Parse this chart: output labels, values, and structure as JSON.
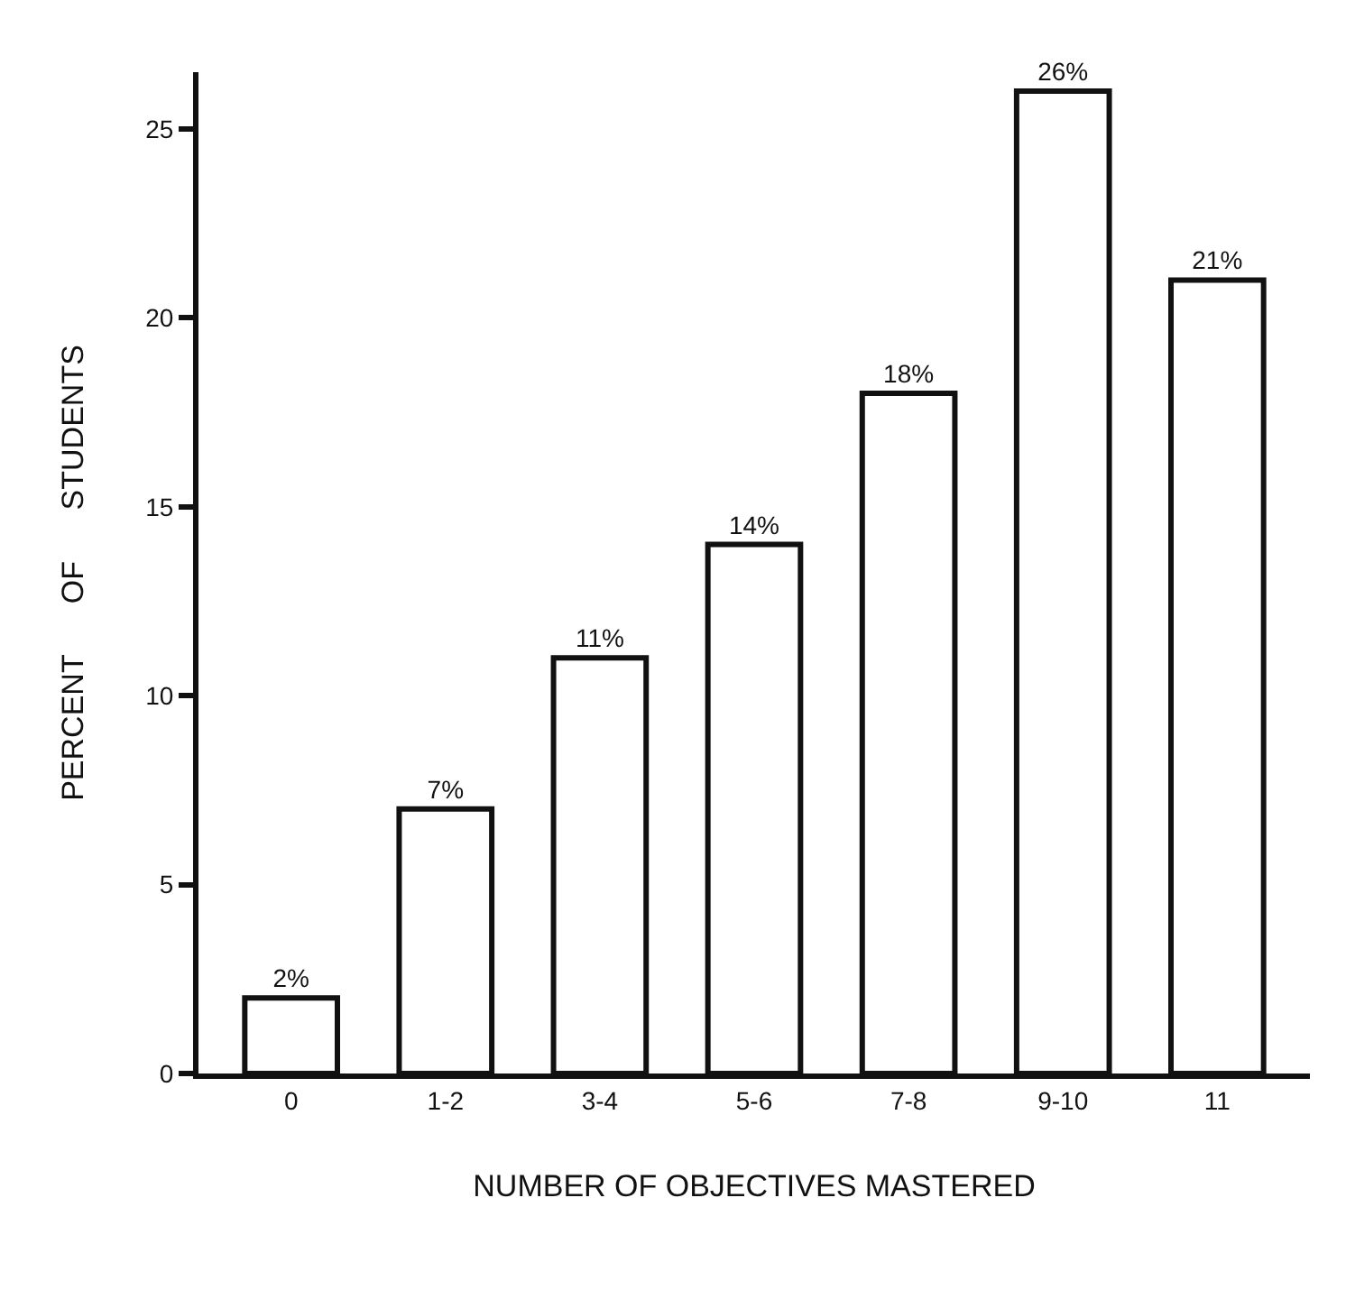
{
  "chart_data": {
    "type": "bar",
    "xlabel": "NUMBER OF OBJECTIVES MASTERED",
    "ylabel": "PERCENT      OF      STUDENTS",
    "categories": [
      "0",
      "1-2",
      "3-4",
      "5-6",
      "7-8",
      "9-10",
      "11"
    ],
    "values": [
      2,
      7,
      11,
      14,
      18,
      26,
      21
    ],
    "value_labels": [
      "2%",
      "7%",
      "11%",
      "14%",
      "18%",
      "26%",
      "21%"
    ],
    "color": "#ffffff",
    "ylim": [
      0,
      26.5
    ],
    "yticks": [
      0,
      5,
      10,
      15,
      20,
      25
    ],
    "grid": false
  }
}
